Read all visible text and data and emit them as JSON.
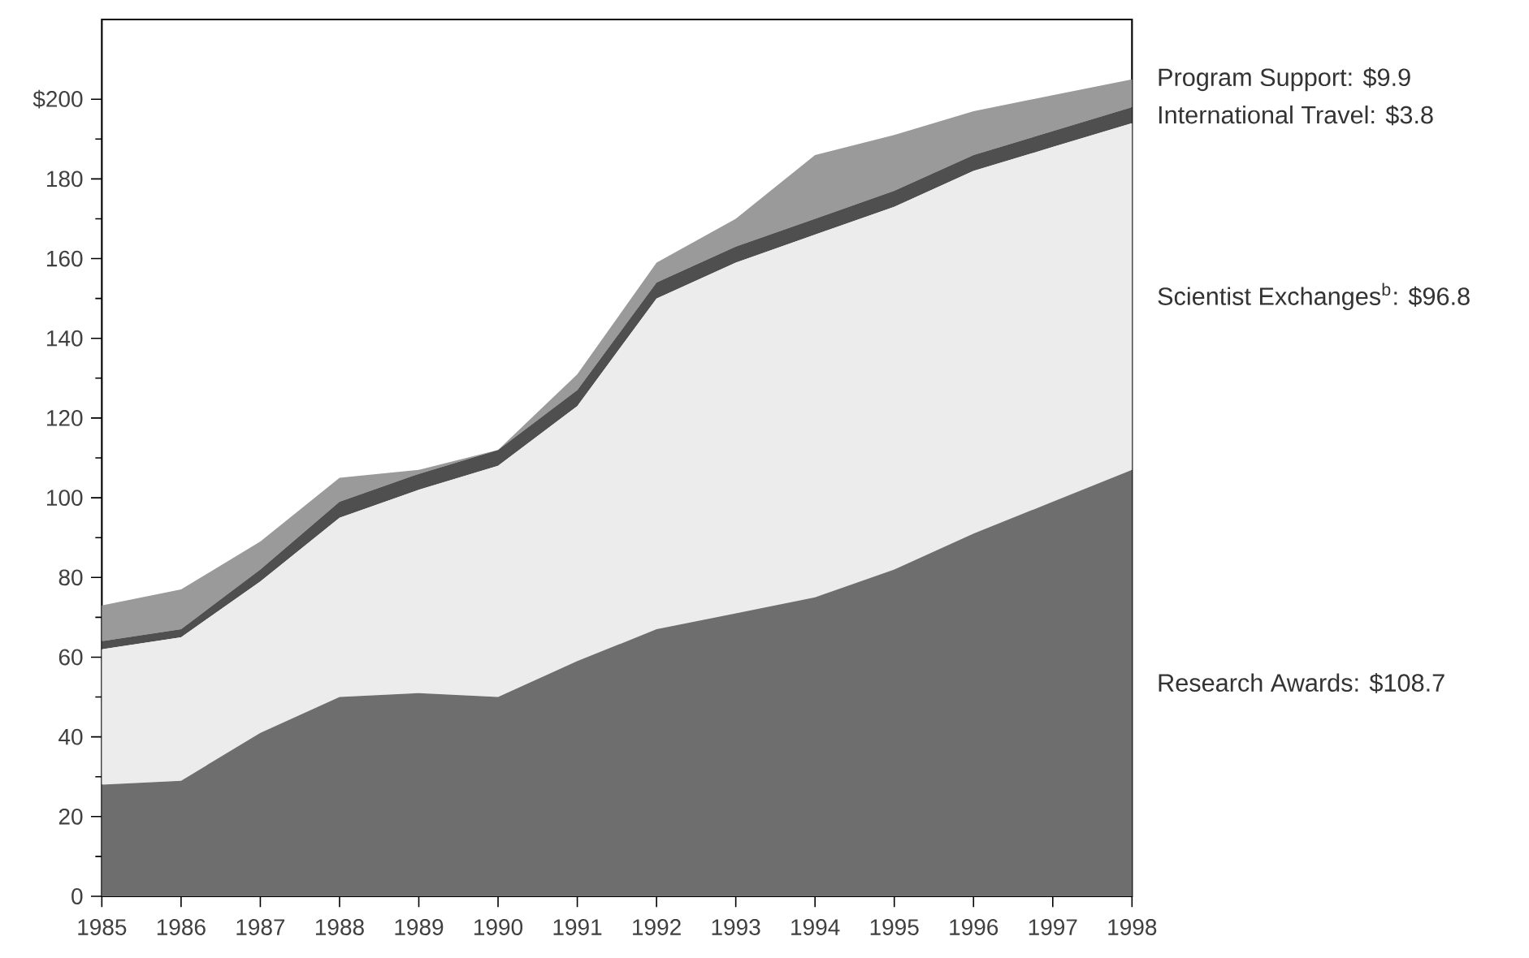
{
  "chart_data": {
    "type": "area",
    "stacked": true,
    "x": [
      1985,
      1986,
      1987,
      1988,
      1989,
      1990,
      1991,
      1992,
      1993,
      1994,
      1995,
      1996,
      1997,
      1998
    ],
    "series": [
      {
        "name": "Research Awards: $108.7",
        "color": "#6e6e6e",
        "values": [
          28,
          29,
          41,
          50,
          51,
          50,
          59,
          67,
          71,
          75,
          82,
          91,
          99,
          107
        ]
      },
      {
        "name": "Scientist Exchanges$^{b}$: $96.8",
        "color": "#ececec",
        "values": [
          34,
          36,
          38,
          45,
          51,
          58,
          64,
          83,
          88,
          91,
          91,
          91,
          89,
          87
        ]
      },
      {
        "name": "International Travel: $3.8",
        "color": "#4f4f4f",
        "values": [
          2,
          2,
          3,
          4,
          4,
          4,
          4,
          4,
          4,
          4,
          4,
          4,
          4,
          4
        ]
      },
      {
        "name": "Program Support: $9.9",
        "color": "#9a9a9a",
        "values": [
          9,
          10,
          7,
          6,
          1,
          0,
          4,
          5,
          7,
          16,
          14,
          11,
          9,
          7
        ]
      }
    ],
    "xlim": [
      1985,
      1998
    ],
    "xticks": [
      1985,
      1986,
      1987,
      1988,
      1989,
      1990,
      1991,
      1992,
      1993,
      1994,
      1995,
      1996,
      1997,
      1998
    ],
    "ylim": [
      0,
      220
    ],
    "yticks": [
      0,
      20,
      40,
      60,
      80,
      100,
      120,
      140,
      160,
      180,
      {
        "value": 200,
        "label": "$200"
      }
    ]
  }
}
